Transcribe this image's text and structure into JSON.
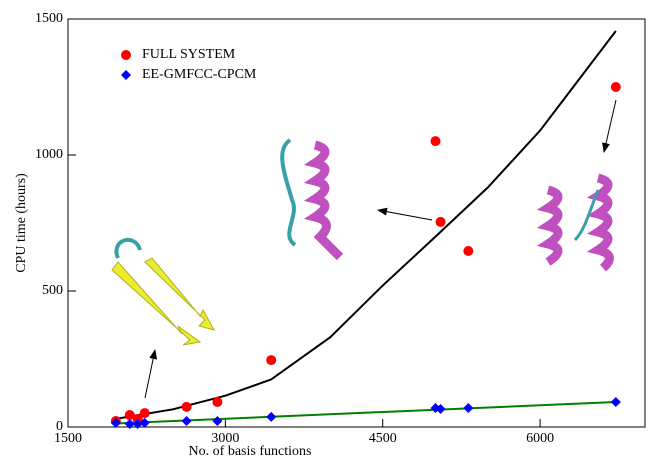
{
  "chart_data": {
    "type": "scatter",
    "xlabel": "No. of basis functions",
    "ylabel": "CPU time (hours)",
    "xlim": [
      1500,
      7000
    ],
    "ylim": [
      0,
      1500
    ],
    "xticks": [
      1500,
      3000,
      4500,
      6000
    ],
    "yticks": [
      0,
      500,
      1000,
      1500
    ],
    "legend": "upper left",
    "series": [
      {
        "name": "FULL SYSTEM",
        "color": "#ff0000",
        "marker": "circle",
        "x": [
          1956,
          2089,
          2165,
          2231,
          2630,
          2924,
          3437,
          5003,
          5051,
          5316,
          6722
        ],
        "values": [
          22,
          44,
          29,
          51,
          74,
          92,
          246,
          1051,
          754,
          647,
          1250
        ]
      },
      {
        "name": "EE-GMFCC-CPCM",
        "color": "#0000ff",
        "marker": "diamond",
        "x": [
          1956,
          2089,
          2165,
          2231,
          2630,
          2924,
          3437,
          5003,
          5051,
          5316,
          6722
        ],
        "values": [
          15,
          11,
          11,
          15,
          22,
          22,
          37,
          70,
          66,
          70,
          92
        ]
      }
    ],
    "fit_lines": [
      {
        "color": "#000000",
        "x": [
          1956,
          2500,
          3000,
          3437,
          4000,
          4500,
          5003,
          5500,
          6000,
          6722
        ],
        "values": [
          30,
          65,
          115,
          175,
          330,
          520,
          700,
          880,
          1090,
          1456
        ]
      },
      {
        "color": "#008000",
        "x": [
          1956,
          6722
        ],
        "values": [
          13,
          92
        ]
      }
    ]
  }
}
